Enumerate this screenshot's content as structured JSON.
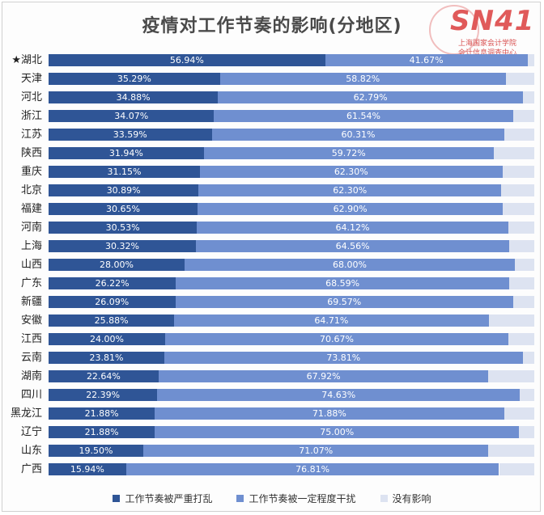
{
  "chart_data": {
    "type": "bar",
    "orientation": "horizontal",
    "stacked": true,
    "title": "疫情对工作节奏的影响(分地区)",
    "categories": [
      "★湖北",
      "天津",
      "河北",
      "浙江",
      "江苏",
      "陕西",
      "重庆",
      "北京",
      "福建",
      "河南",
      "上海",
      "山西",
      "广东",
      "新疆",
      "安徽",
      "江西",
      "云南",
      "湖南",
      "四川",
      "黑龙江",
      "辽宁",
      "山东",
      "广西"
    ],
    "series": [
      {
        "name": "工作节奏被严重打乱",
        "color": "#2f5596",
        "values": [
          56.94,
          35.29,
          34.88,
          34.07,
          33.59,
          31.94,
          31.15,
          30.89,
          30.65,
          30.53,
          30.32,
          28.0,
          26.22,
          26.09,
          25.88,
          24.0,
          23.81,
          22.64,
          22.39,
          21.88,
          21.88,
          19.5,
          15.94
        ],
        "labels": [
          "56.94%",
          "35.29%",
          "34.88%",
          "34.07%",
          "33.59%",
          "31.94%",
          "31.15%",
          "30.89%",
          "30.65%",
          "30.53%",
          "30.32%",
          "28.00%",
          "26.22%",
          "26.09%",
          "25.88%",
          "24.00%",
          "23.81%",
          "22.64%",
          "22.39%",
          "21.88%",
          "21.88%",
          "19.50%",
          "15.94%"
        ]
      },
      {
        "name": "工作节奏被一定程度干扰",
        "color": "#6f8fd0",
        "values": [
          41.67,
          58.82,
          62.79,
          61.54,
          60.31,
          59.72,
          62.3,
          62.3,
          62.9,
          64.12,
          64.56,
          68.0,
          68.59,
          69.57,
          64.71,
          70.67,
          73.81,
          67.92,
          74.63,
          71.88,
          75.0,
          71.07,
          76.81
        ],
        "labels": [
          "41.67%",
          "58.82%",
          "62.79%",
          "61.54%",
          "60.31%",
          "59.72%",
          "62.30%",
          "62.30%",
          "62.90%",
          "64.12%",
          "64.56%",
          "68.00%",
          "68.59%",
          "69.57%",
          "64.71%",
          "70.67%",
          "73.81%",
          "67.92%",
          "74.63%",
          "71.88%",
          "75.00%",
          "71.07%",
          "76.81%"
        ]
      },
      {
        "name": "没有影响",
        "color": "#dde3f1",
        "values": [
          1.39,
          5.89,
          2.33,
          4.39,
          6.1,
          8.34,
          6.55,
          6.81,
          6.45,
          5.35,
          5.12,
          4.0,
          5.19,
          4.34,
          9.41,
          5.33,
          2.38,
          9.44,
          2.98,
          6.24,
          3.12,
          9.43,
          7.25
        ]
      }
    ],
    "xlim": [
      0,
      100
    ],
    "grid": false,
    "legend": "bottom"
  },
  "logo": {
    "letters": "SN41",
    "line1": "上海国家会计学院",
    "line2": "会计信息调查中心"
  }
}
